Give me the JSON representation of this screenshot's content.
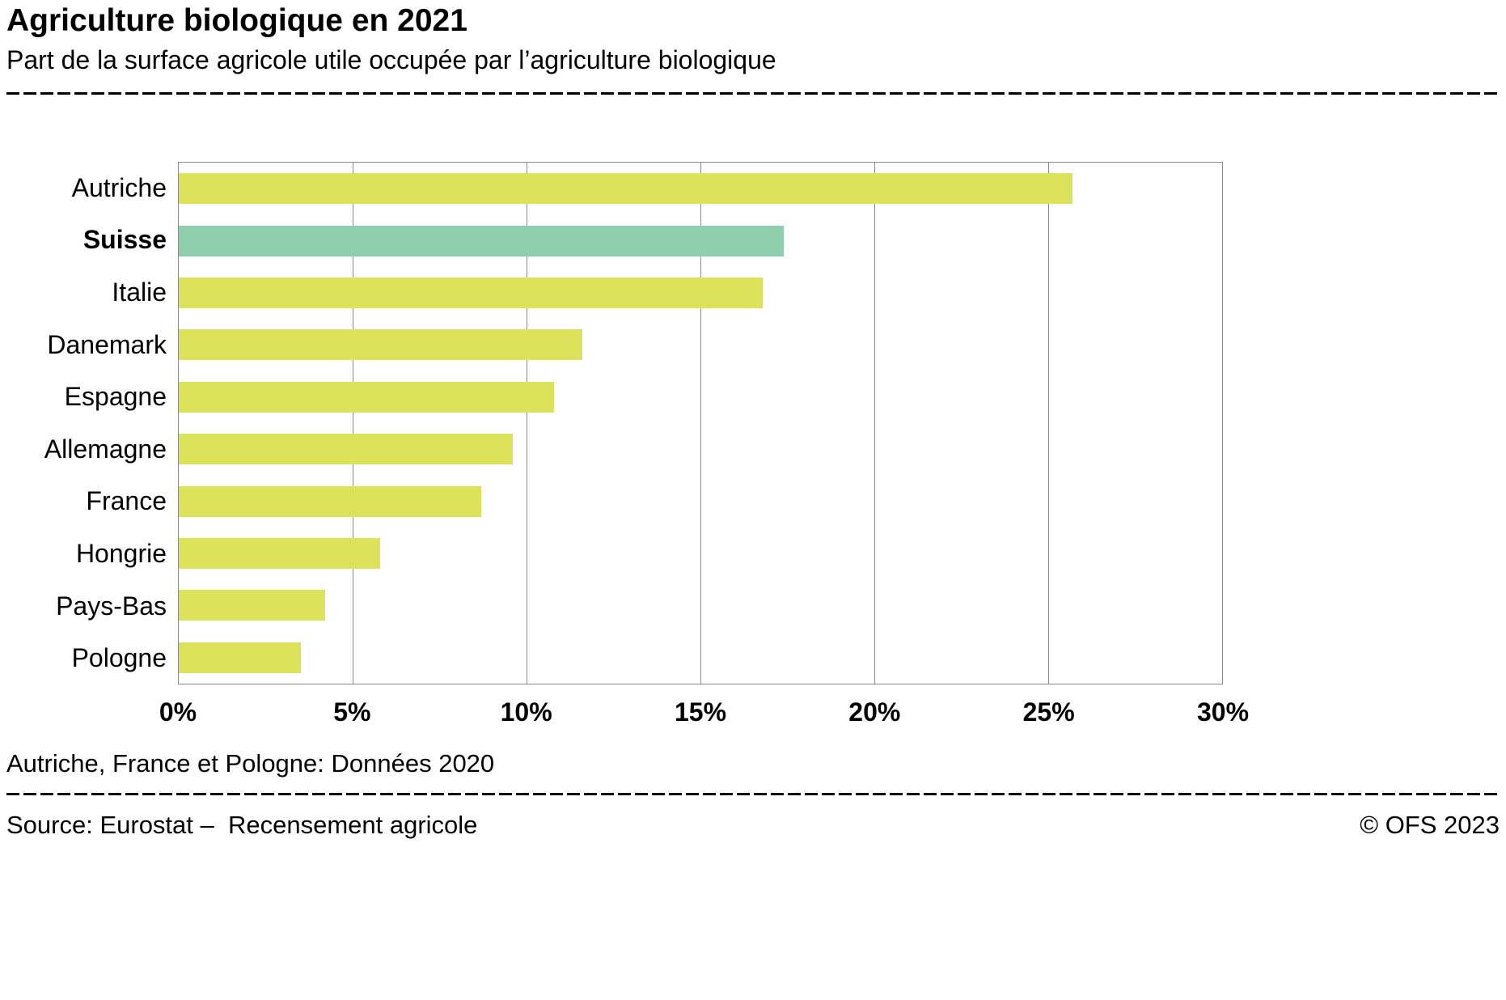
{
  "header": {
    "title": "Agriculture biologique en 2021",
    "subtitle": "Part de la surface agricole utile occupée par l’agriculture biologique"
  },
  "chart_data": {
    "type": "bar",
    "orientation": "horizontal",
    "title": "Agriculture biologique en 2021",
    "subtitle": "Part de la surface agricole utile occupée par l’agriculture biologique",
    "categories": [
      "Autriche",
      "Suisse",
      "Italie",
      "Danemark",
      "Espagne",
      "Allemagne",
      "France",
      "Hongrie",
      "Pays-Bas",
      "Pologne"
    ],
    "values": [
      25.7,
      17.4,
      16.8,
      11.6,
      10.8,
      9.6,
      8.7,
      5.8,
      4.2,
      3.5
    ],
    "unit": "%",
    "highlight_category": "Suisse",
    "bar_color": "#dde25b",
    "highlight_color": "#8fceac",
    "grid_color": "#8a8a8a",
    "xlim": [
      0,
      30
    ],
    "x_ticks": [
      "0%",
      "5%",
      "10%",
      "15%",
      "20%",
      "25%",
      "30%"
    ],
    "x_tick_values": [
      0,
      5,
      10,
      15,
      20,
      25,
      30
    ],
    "grid": "vertical"
  },
  "footnote": "Autriche, France et Pologne: Données 2020",
  "footer": {
    "source": "Source: Eurostat –  Recensement agricole",
    "copyright": "© OFS 2023"
  }
}
